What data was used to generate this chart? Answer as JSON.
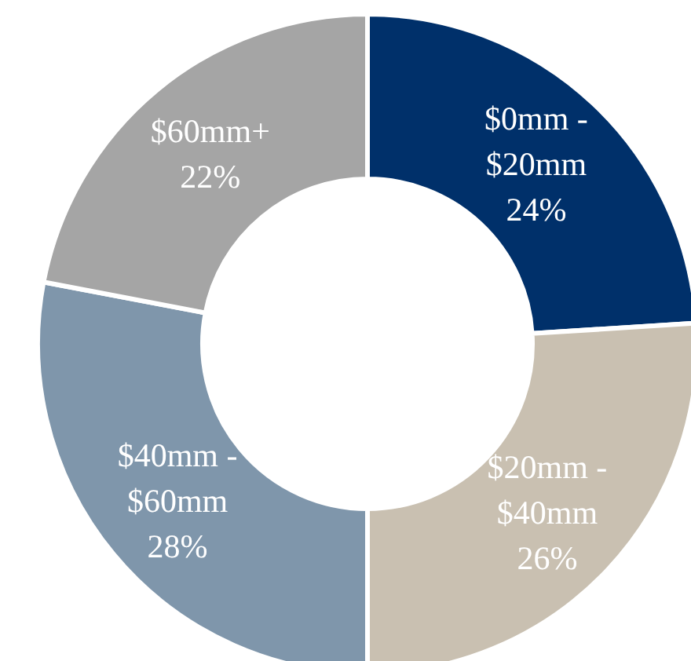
{
  "chart_data": {
    "type": "donut",
    "categories": [
      "$0mm - $20mm",
      "$20mm - $40mm",
      "$40mm - $60mm",
      "$60mm+"
    ],
    "values": [
      24,
      26,
      28,
      22
    ],
    "colors": [
      "#00306a",
      "#c9c0b1",
      "#7f96ab",
      "#a5a5a5"
    ],
    "value_labels": [
      "24%",
      "26%",
      "28%",
      "22%"
    ]
  }
}
